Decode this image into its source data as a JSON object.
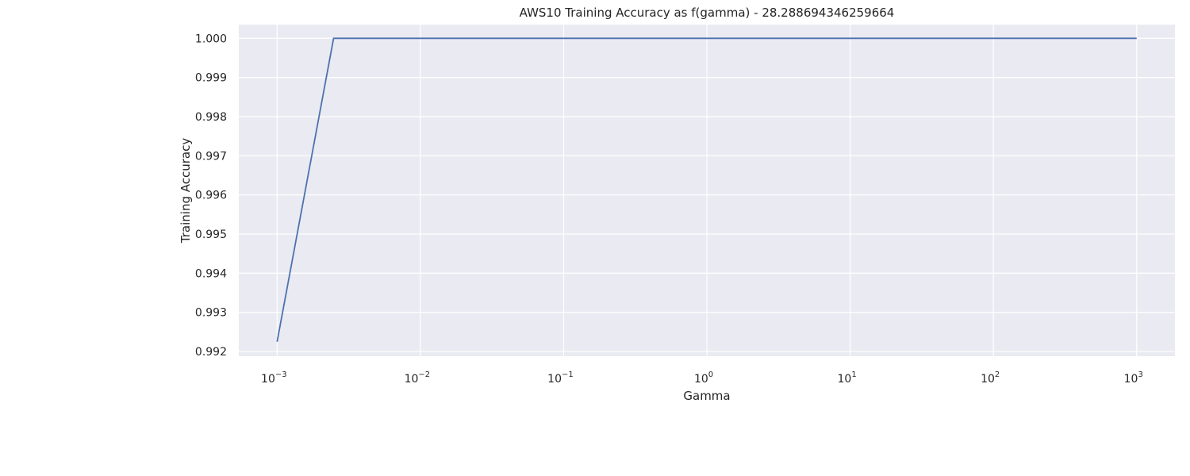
{
  "chart_data": {
    "type": "line",
    "title": "AWS10 Training Accuracy as f(gamma) - 28.288694346259664",
    "xlabel": "Gamma",
    "ylabel": "Training Accuracy",
    "x_scale": "log",
    "xlim": [
      0.00054,
      1850
    ],
    "ylim": [
      0.99188,
      1.00035
    ],
    "x_ticks": [
      {
        "value": 0.001,
        "base": "10",
        "exp": "−3"
      },
      {
        "value": 0.01,
        "base": "10",
        "exp": "−2"
      },
      {
        "value": 0.1,
        "base": "10",
        "exp": "−1"
      },
      {
        "value": 1,
        "base": "10",
        "exp": "0"
      },
      {
        "value": 10,
        "base": "10",
        "exp": "1"
      },
      {
        "value": 100,
        "base": "10",
        "exp": "2"
      },
      {
        "value": 1000,
        "base": "10",
        "exp": "3"
      }
    ],
    "y_ticks": [
      {
        "value": 0.992,
        "label": "0.992"
      },
      {
        "value": 0.993,
        "label": "0.993"
      },
      {
        "value": 0.994,
        "label": "0.994"
      },
      {
        "value": 0.995,
        "label": "0.995"
      },
      {
        "value": 0.996,
        "label": "0.996"
      },
      {
        "value": 0.997,
        "label": "0.997"
      },
      {
        "value": 0.998,
        "label": "0.998"
      },
      {
        "value": 0.999,
        "label": "0.999"
      },
      {
        "value": 1.0,
        "label": "1.000"
      }
    ],
    "grid": true,
    "legend": "none",
    "series": [
      {
        "color": "#4c72b0",
        "x": [
          0.001,
          0.00248,
          0.00616,
          0.0153,
          0.038,
          0.0943,
          0.234,
          0.582,
          1.44,
          3.59,
          8.9,
          22.1,
          54.9,
          136,
          338,
          839,
          1000
        ],
        "y": [
          0.99225,
          1.0,
          1.0,
          1.0,
          1.0,
          1.0,
          1.0,
          1.0,
          1.0,
          1.0,
          1.0,
          1.0,
          1.0,
          1.0,
          1.0,
          1.0,
          1.0
        ]
      }
    ]
  }
}
